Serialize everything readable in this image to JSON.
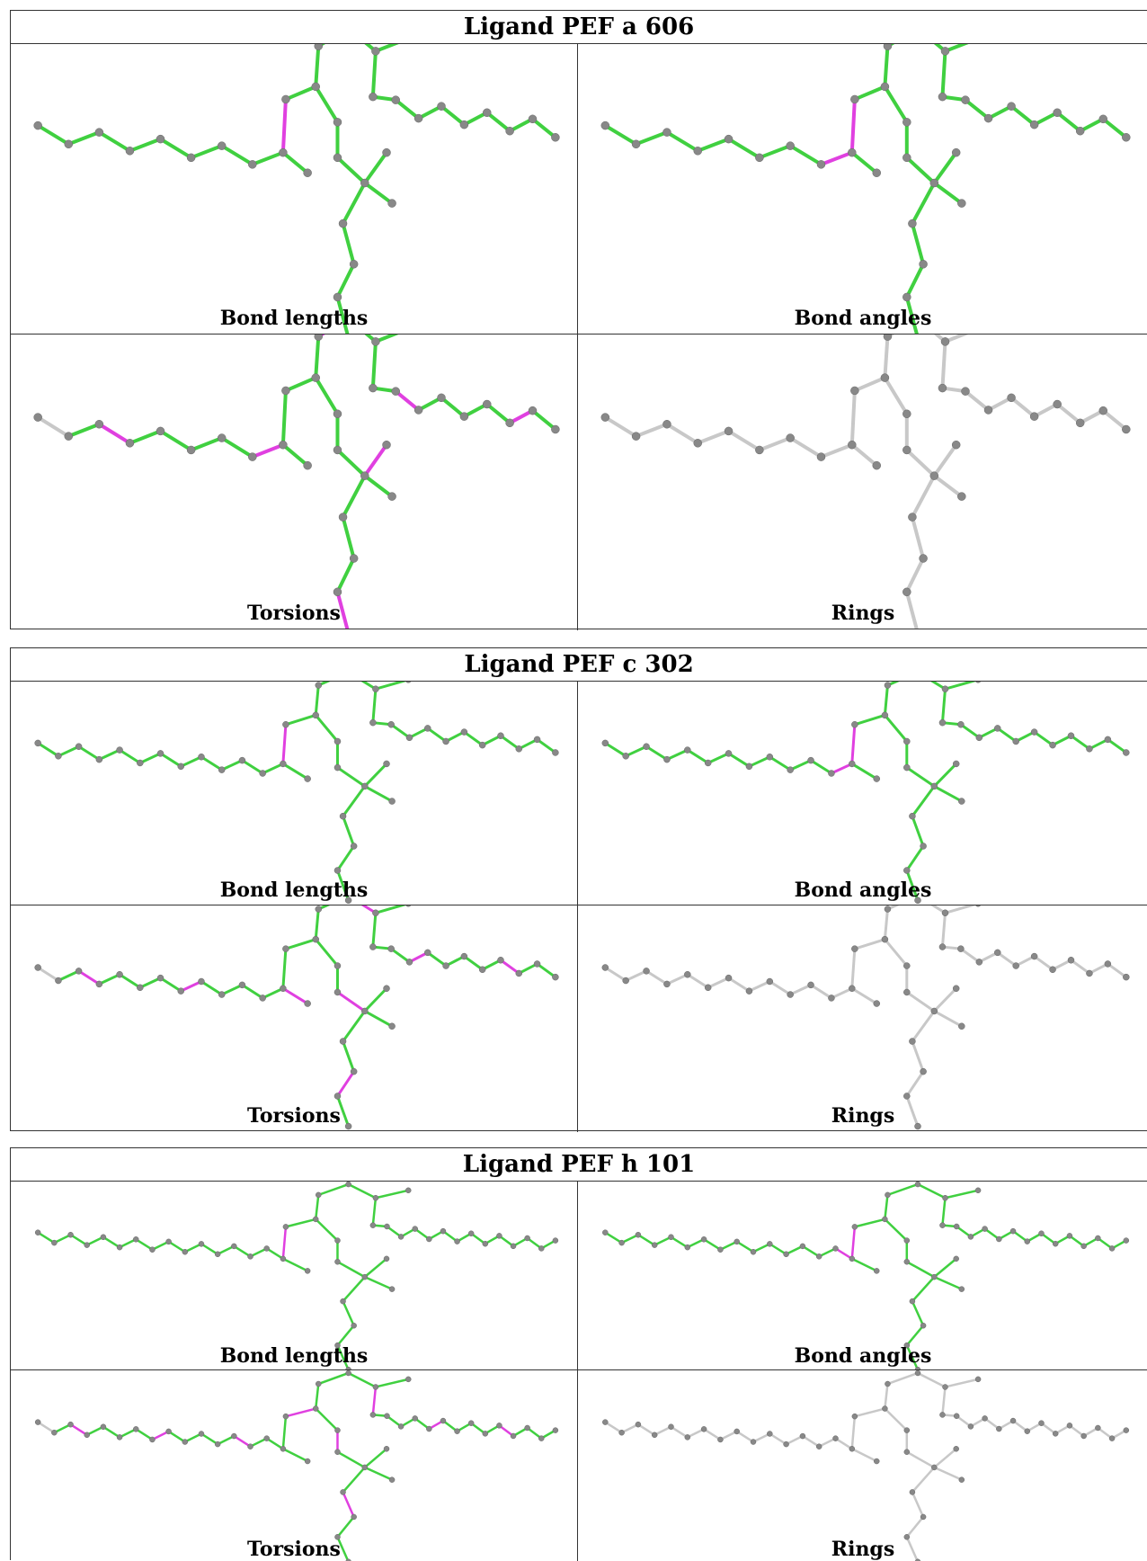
{
  "colors": {
    "normal": "#40d040",
    "outlier": "#e040e0",
    "unchecked": "#c8c8c8",
    "atom": "#888888"
  },
  "ligands": [
    {
      "title": "Ligand PEF a 606",
      "panels": [
        {
          "caption": "Bond lengths",
          "mode": "lengths"
        },
        {
          "caption": "Bond angles",
          "mode": "angles"
        },
        {
          "caption": "Torsions",
          "mode": "torsions"
        },
        {
          "caption": "Rings",
          "mode": "rings"
        }
      ]
    },
    {
      "title": "Ligand PEF c 302",
      "panels": [
        {
          "caption": "Bond lengths",
          "mode": "lengths"
        },
        {
          "caption": "Bond angles",
          "mode": "angles"
        },
        {
          "caption": "Torsions",
          "mode": "torsions"
        },
        {
          "caption": "Rings",
          "mode": "rings"
        }
      ]
    },
    {
      "title": "Ligand PEF h 101",
      "panels": [
        {
          "caption": "Bond lengths",
          "mode": "lengths"
        },
        {
          "caption": "Bond angles",
          "mode": "angles"
        },
        {
          "caption": "Torsions",
          "mode": "torsions"
        },
        {
          "caption": "Rings",
          "mode": "rings"
        }
      ]
    }
  ]
}
